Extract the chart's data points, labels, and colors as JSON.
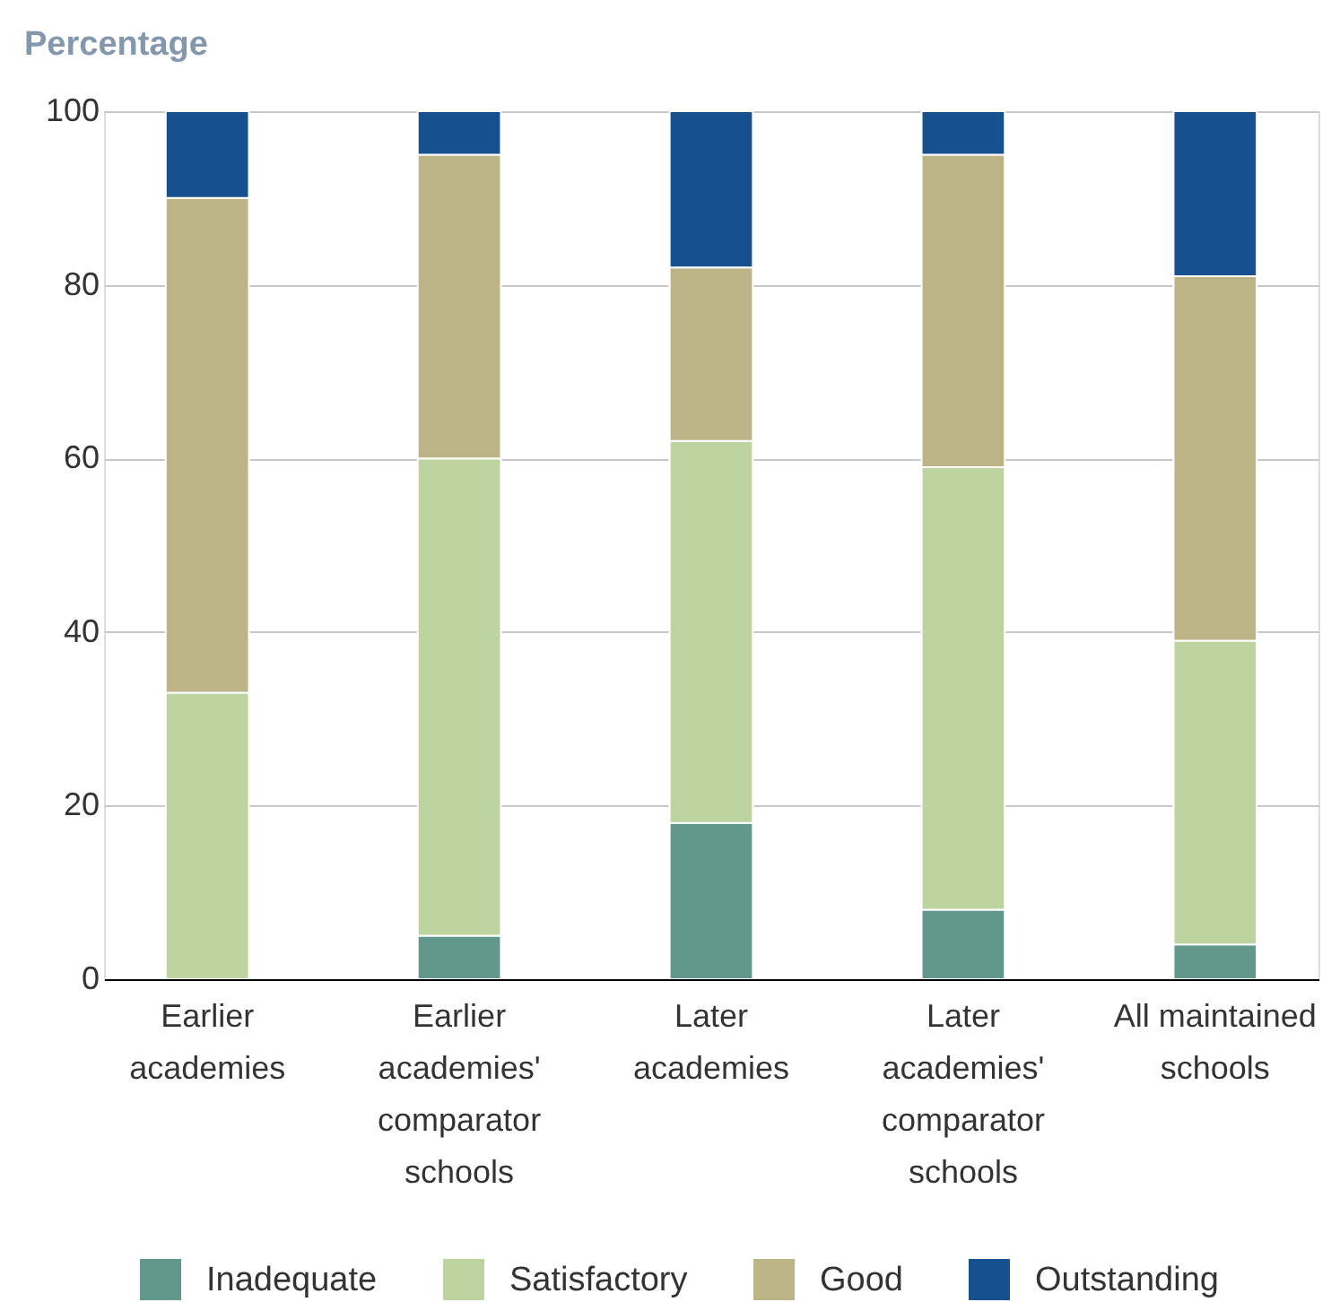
{
  "chart_data": {
    "type": "bar",
    "stacked": true,
    "ylabel": "Percentage",
    "categories": [
      "Earlier academies",
      "Earlier academies' comparator schools",
      "Later academies",
      "Later academies' comparator schools",
      "All maintained schools"
    ],
    "series": [
      {
        "name": "Inadequate",
        "color": "#62978b",
        "values": [
          0,
          5,
          18,
          8,
          4
        ]
      },
      {
        "name": "Satisfactory",
        "color": "#bdd4a0",
        "values": [
          33,
          55,
          44,
          51,
          35
        ]
      },
      {
        "name": "Good",
        "color": "#bcb387",
        "values": [
          57,
          35,
          20,
          36,
          42
        ]
      },
      {
        "name": "Outstanding",
        "color": "#16508e",
        "values": [
          10,
          5,
          18,
          5,
          19
        ]
      }
    ],
    "ylim": [
      0,
      100
    ],
    "yticks": [
      0,
      20,
      40,
      60,
      80,
      100
    ],
    "grid": "y",
    "legend": "bottom"
  }
}
